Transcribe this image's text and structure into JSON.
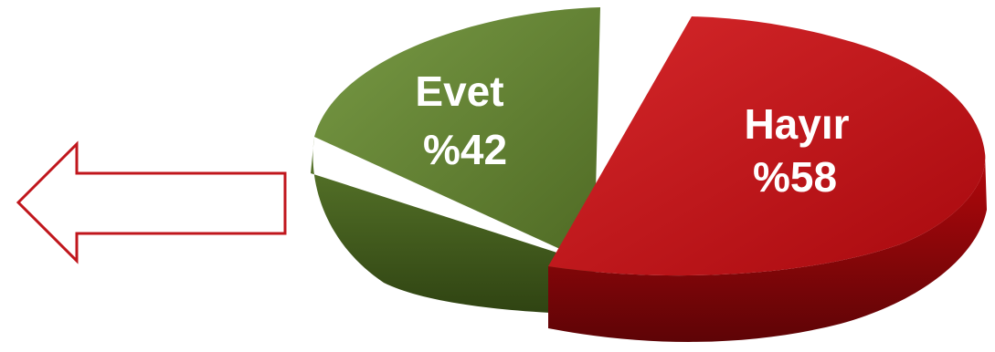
{
  "chart_data": {
    "type": "pie",
    "style": "3d-exploded",
    "slices": [
      {
        "label": "Evet",
        "value": 42,
        "value_text": "%42",
        "color": "#5e7a2e"
      },
      {
        "label": "Hayır",
        "value": 58,
        "value_text": "%58",
        "color": "#c0181b"
      }
    ]
  },
  "arrow": {
    "direction": "left",
    "color": "#c0161c"
  }
}
